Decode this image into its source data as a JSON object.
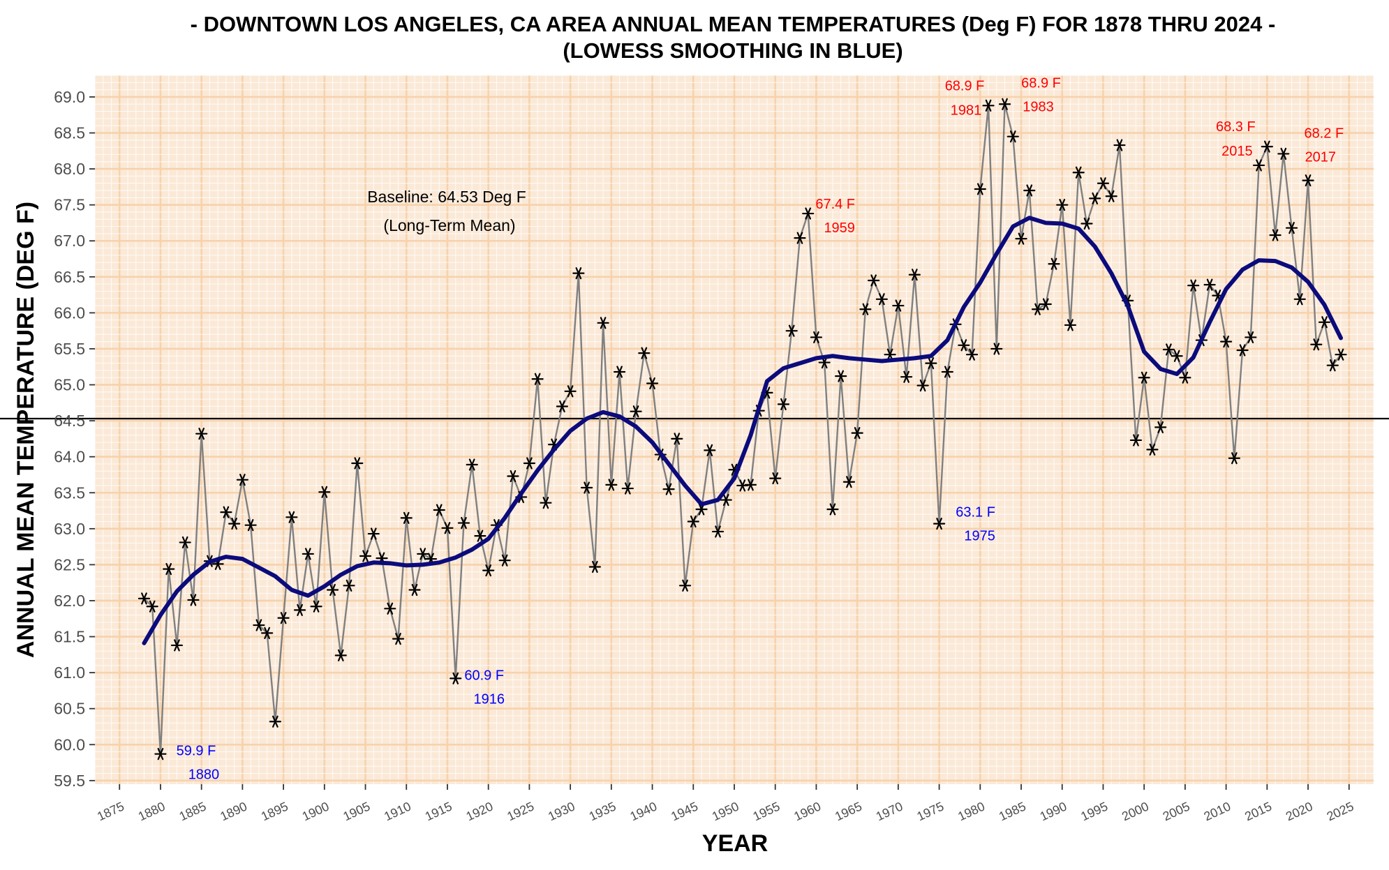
{
  "chart_data": {
    "type": "line",
    "title": "- DOWNTOWN LOS ANGELES, CA AREA ANNUAL MEAN TEMPERATURES (Deg F) FOR 1878 THRU 2024 -",
    "subtitle": "(LOWESS SMOOTHING IN BLUE)",
    "xlabel": "YEAR",
    "ylabel": "ANNUAL MEAN TEMPERATURE (DEG F)",
    "xlim": [
      1872,
      2028
    ],
    "ylim": [
      59.45,
      69.3
    ],
    "x_ticks": [
      1875,
      1880,
      1885,
      1890,
      1895,
      1900,
      1905,
      1910,
      1915,
      1920,
      1925,
      1930,
      1935,
      1940,
      1945,
      1950,
      1955,
      1960,
      1965,
      1970,
      1975,
      1980,
      1985,
      1990,
      1995,
      2000,
      2005,
      2010,
      2015,
      2020,
      2025
    ],
    "y_ticks": [
      59.5,
      60.0,
      60.5,
      61.0,
      61.5,
      62.0,
      62.5,
      63.0,
      63.5,
      64.0,
      64.5,
      65.0,
      65.5,
      66.0,
      66.5,
      67.0,
      67.5,
      68.0,
      68.5,
      69.0
    ],
    "y_tick_labels": [
      "59.5",
      "60.0",
      "60.5",
      "61.0",
      "61.5",
      "62.0",
      "62.5",
      "63.0",
      "63.5",
      "64.0",
      "64.5",
      "65.0",
      "65.5",
      "66.0",
      "66.5",
      "67.0",
      "67.5",
      "68.0",
      "68.5",
      "69.0"
    ],
    "baseline": {
      "value": 64.53,
      "label_line1": "Baseline: 64.53 Deg F",
      "label_line2": "(Long-Term Mean)"
    },
    "colors": {
      "panel": "#fbe9d7",
      "grid": "#f6d2ac",
      "series": "#808080",
      "smooth": "#0b0b7c",
      "record_high": "#ff0000",
      "record_low": "#0000ff",
      "baseline": "#000000"
    },
    "series": [
      {
        "x": [
          1878,
          1879,
          1880,
          1881,
          1882,
          1883,
          1884,
          1885,
          1886,
          1887,
          1888,
          1889,
          1890,
          1891,
          1892,
          1893,
          1894,
          1895,
          1896,
          1897,
          1898,
          1899,
          1900,
          1901,
          1902,
          1903,
          1904,
          1905,
          1906,
          1907,
          1908,
          1909,
          1910,
          1911,
          1912,
          1913,
          1914,
          1915,
          1916,
          1917,
          1918,
          1919,
          1920,
          1921,
          1922,
          1923,
          1924,
          1925,
          1926,
          1927,
          1928,
          1929,
          1930,
          1931,
          1932,
          1933,
          1934,
          1935,
          1936,
          1937,
          1938,
          1939,
          1940,
          1941,
          1942,
          1943,
          1944,
          1945,
          1946,
          1947,
          1948,
          1949,
          1950,
          1951,
          1952,
          1953,
          1954,
          1955,
          1956,
          1957,
          1958,
          1959,
          1960,
          1961,
          1962,
          1963,
          1964,
          1965,
          1966,
          1967,
          1968,
          1969,
          1970,
          1971,
          1972,
          1973,
          1974,
          1975,
          1976,
          1977,
          1978,
          1979,
          1980,
          1981,
          1982,
          1983,
          1984,
          1985,
          1986,
          1987,
          1988,
          1989,
          1990,
          1991,
          1992,
          1993,
          1994,
          1995,
          1996,
          1997,
          1998,
          1999,
          2000,
          2001,
          2002,
          2003,
          2004,
          2005,
          2006,
          2007,
          2008,
          2009,
          2010,
          2011,
          2012,
          2013,
          2014,
          2015,
          2016,
          2017,
          2018,
          2019,
          2020,
          2021,
          2022,
          2023,
          2024
        ],
        "y": [
          62.03,
          61.92,
          59.87,
          62.44,
          61.38,
          62.81,
          62.01,
          64.32,
          62.55,
          62.51,
          63.23,
          63.07,
          63.68,
          63.05,
          61.66,
          61.55,
          60.32,
          61.76,
          63.16,
          61.87,
          62.65,
          61.92,
          63.51,
          62.15,
          61.24,
          62.21,
          63.91,
          62.62,
          62.93,
          62.59,
          61.89,
          61.47,
          63.15,
          62.15,
          62.65,
          62.58,
          63.26,
          63.01,
          60.92,
          63.08,
          63.89,
          62.9,
          62.42,
          63.05,
          62.56,
          63.73,
          63.44,
          63.91,
          65.08,
          63.36,
          64.17,
          64.7,
          64.91,
          66.55,
          63.57,
          62.47,
          65.86,
          63.61,
          65.18,
          63.56,
          64.63,
          65.44,
          65.02,
          64.03,
          63.55,
          64.25,
          62.21,
          63.1,
          63.27,
          64.09,
          62.96,
          63.4,
          63.82,
          63.6,
          63.61,
          64.64,
          64.89,
          63.7,
          64.73,
          65.75,
          67.04,
          67.38,
          65.66,
          65.31,
          63.27,
          65.12,
          63.65,
          64.33,
          66.05,
          66.45,
          66.19,
          65.42,
          66.1,
          65.11,
          66.53,
          64.99,
          65.3,
          63.07,
          65.18,
          65.84,
          65.55,
          65.42,
          67.72,
          68.88,
          65.5,
          68.9,
          68.45,
          67.03,
          67.7,
          66.05,
          66.12,
          66.68,
          67.5,
          65.83,
          67.95,
          67.24,
          67.59,
          67.8,
          67.62,
          68.33,
          66.17,
          64.23,
          65.1,
          64.1,
          64.41,
          65.49,
          65.4,
          65.1,
          66.38,
          65.62,
          66.39,
          66.24,
          65.6,
          63.98,
          65.48,
          65.66,
          68.05,
          68.31,
          67.08,
          68.21,
          67.18,
          66.19,
          67.84,
          65.56,
          65.87,
          65.27,
          65.42
        ]
      },
      {
        "name": "LOWESS",
        "x": [
          1878,
          1880,
          1882,
          1884,
          1886,
          1888,
          1890,
          1892,
          1894,
          1896,
          1898,
          1900,
          1902,
          1904,
          1906,
          1908,
          1910,
          1912,
          1914,
          1916,
          1918,
          1920,
          1922,
          1924,
          1926,
          1928,
          1930,
          1932,
          1934,
          1936,
          1938,
          1940,
          1942,
          1944,
          1946,
          1948,
          1950,
          1952,
          1954,
          1956,
          1958,
          1960,
          1962,
          1964,
          1966,
          1968,
          1970,
          1972,
          1974,
          1976,
          1978,
          1980,
          1982,
          1984,
          1986,
          1988,
          1990,
          1992,
          1994,
          1996,
          1998,
          2000,
          2002,
          2004,
          2006,
          2008,
          2010,
          2012,
          2014,
          2016,
          2018,
          2020,
          2022,
          2024
        ],
        "y": [
          61.41,
          61.8,
          62.13,
          62.36,
          62.54,
          62.61,
          62.58,
          62.46,
          62.34,
          62.15,
          62.07,
          62.2,
          62.36,
          62.48,
          62.53,
          62.52,
          62.49,
          62.5,
          62.53,
          62.6,
          62.71,
          62.86,
          63.15,
          63.49,
          63.81,
          64.1,
          64.36,
          64.53,
          64.62,
          64.56,
          64.42,
          64.2,
          63.9,
          63.6,
          63.34,
          63.4,
          63.7,
          64.3,
          65.05,
          65.23,
          65.3,
          65.37,
          65.4,
          65.37,
          65.35,
          65.33,
          65.35,
          65.37,
          65.4,
          65.62,
          66.08,
          66.42,
          66.82,
          67.2,
          67.32,
          67.25,
          67.24,
          67.17,
          66.92,
          66.55,
          66.1,
          65.46,
          65.22,
          65.15,
          65.38,
          65.87,
          66.33,
          66.6,
          66.73,
          66.72,
          66.63,
          66.43,
          66.11,
          65.65
        ]
      }
    ],
    "annotations": [
      {
        "year": 1880,
        "value": "59.9 F",
        "label": "1880",
        "kind": "low"
      },
      {
        "year": 1916,
        "value": "60.9 F",
        "label": "1916",
        "kind": "low"
      },
      {
        "year": 1959,
        "value": "67.4 F",
        "label": "1959",
        "kind": "high"
      },
      {
        "year": 1975,
        "value": "63.1 F",
        "label": "1975",
        "kind": "low"
      },
      {
        "year": 1981,
        "value": "68.9 F",
        "label": "1981",
        "kind": "high"
      },
      {
        "year": 1983,
        "value": "68.9 F",
        "label": "1983",
        "kind": "high"
      },
      {
        "year": 2015,
        "value": "68.3 F",
        "label": "2015",
        "kind": "high"
      },
      {
        "year": 2017,
        "value": "68.2 F",
        "label": "2017",
        "kind": "high"
      }
    ]
  }
}
